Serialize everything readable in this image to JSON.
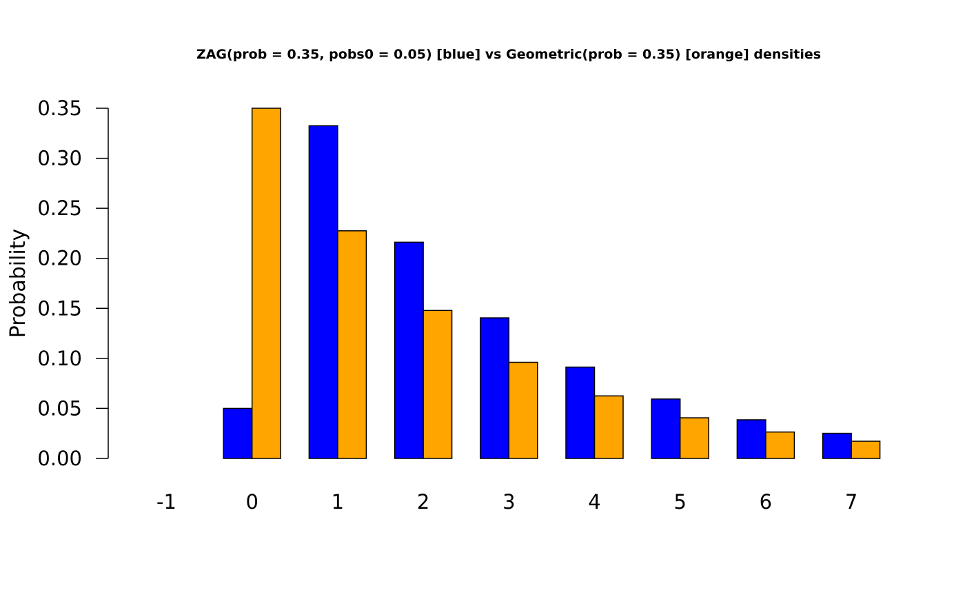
{
  "chart_data": {
    "type": "bar",
    "title": "ZAG(prob = 0.35, pobs0 = 0.05) [blue] vs Geometric(prob = 0.35) [orange] densities",
    "xlabel": "",
    "ylabel": "Probability",
    "categories": [
      "-1",
      "0",
      "1",
      "2",
      "3",
      "4",
      "5",
      "6",
      "7"
    ],
    "series": [
      {
        "color": "#0000ff",
        "values": [
          0,
          0.05,
          0.3325,
          0.2161,
          0.1405,
          0.0913,
          0.0594,
          0.0386,
          0.0251
        ]
      },
      {
        "color": "#ffa500",
        "values": [
          0,
          0.35,
          0.2275,
          0.1479,
          0.0961,
          0.0625,
          0.0406,
          0.0264,
          0.0172
        ]
      }
    ],
    "ylim": [
      0,
      0.35
    ],
    "yticks": [
      "0.00",
      "0.05",
      "0.10",
      "0.15",
      "0.20",
      "0.25",
      "0.30",
      "0.35"
    ],
    "grid": false,
    "legend": "none"
  }
}
